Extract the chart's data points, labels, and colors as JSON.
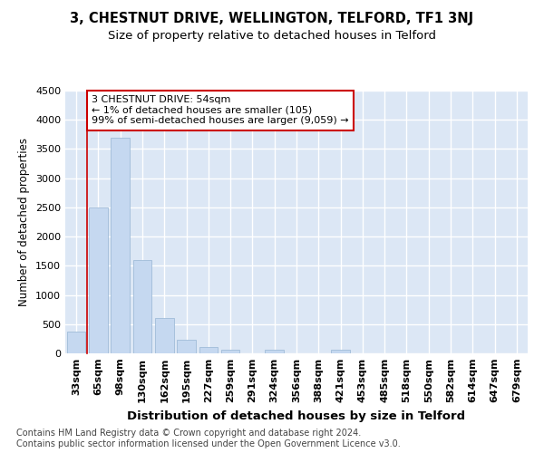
{
  "title1": "3, CHESTNUT DRIVE, WELLINGTON, TELFORD, TF1 3NJ",
  "title2": "Size of property relative to detached houses in Telford",
  "xlabel": "Distribution of detached houses by size in Telford",
  "ylabel": "Number of detached properties",
  "categories": [
    "33sqm",
    "65sqm",
    "98sqm",
    "130sqm",
    "162sqm",
    "195sqm",
    "227sqm",
    "259sqm",
    "291sqm",
    "324sqm",
    "356sqm",
    "388sqm",
    "421sqm",
    "453sqm",
    "485sqm",
    "518sqm",
    "550sqm",
    "582sqm",
    "614sqm",
    "647sqm",
    "679sqm"
  ],
  "values": [
    380,
    2500,
    3700,
    1600,
    600,
    240,
    110,
    60,
    0,
    60,
    0,
    0,
    60,
    0,
    0,
    0,
    0,
    0,
    0,
    0,
    0
  ],
  "bar_color": "#c5d8f0",
  "bar_edge_color": "#a0bcd8",
  "annotation_text": "3 CHESTNUT DRIVE: 54sqm\n← 1% of detached houses are smaller (105)\n99% of semi-detached houses are larger (9,059) →",
  "box_facecolor": "#ffffff",
  "box_edgecolor": "#cc0000",
  "vline_color": "#cc0000",
  "ylim": [
    0,
    4500
  ],
  "yticks": [
    0,
    500,
    1000,
    1500,
    2000,
    2500,
    3000,
    3500,
    4000,
    4500
  ],
  "bg_color": "#dce7f5",
  "grid_color": "#ffffff",
  "footnote": "Contains HM Land Registry data © Crown copyright and database right 2024.\nContains public sector information licensed under the Open Government Licence v3.0.",
  "title1_fontsize": 10.5,
  "title2_fontsize": 9.5,
  "xlabel_fontsize": 9.5,
  "ylabel_fontsize": 8.5,
  "tick_fontsize": 8,
  "annot_fontsize": 8,
  "footnote_fontsize": 7
}
